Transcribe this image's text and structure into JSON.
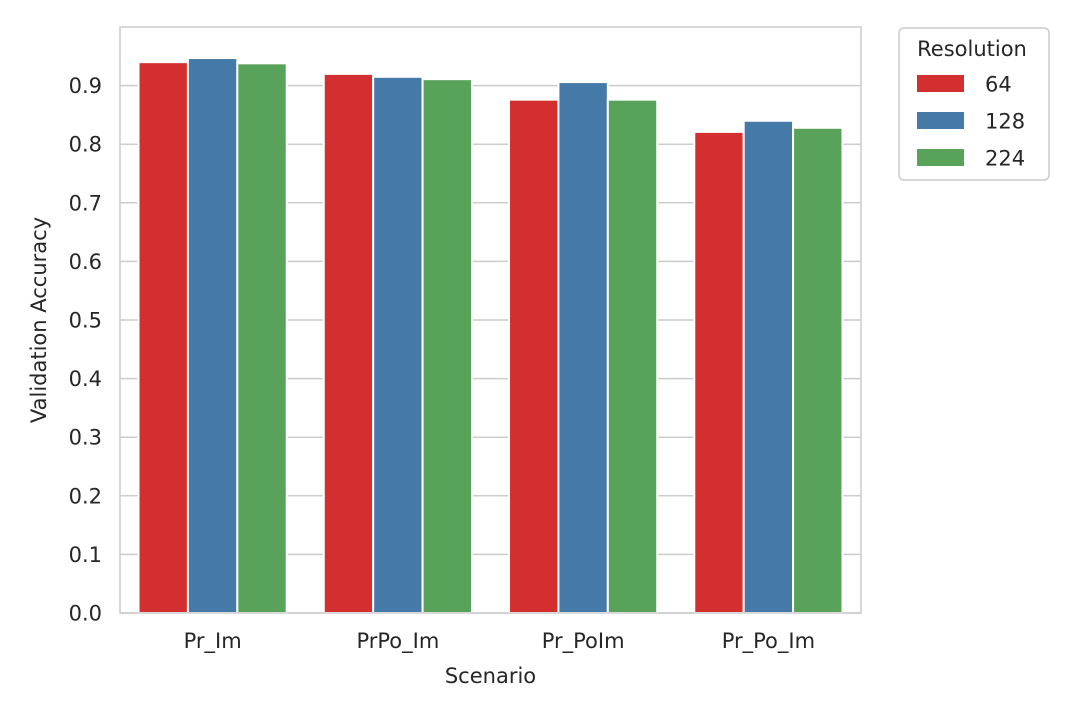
{
  "chart_data": {
    "type": "bar",
    "title": "",
    "xlabel": "Scenario",
    "ylabel": "Validation Accuracy",
    "categories": [
      "Pr_Im",
      "PrPo_Im",
      "Pr_PoIm",
      "Pr_Po_Im"
    ],
    "series": [
      {
        "name": "64",
        "color": "#d32f2f",
        "values": [
          0.94,
          0.92,
          0.876,
          0.821
        ]
      },
      {
        "name": "128",
        "color": "#4479a8",
        "values": [
          0.947,
          0.915,
          0.906,
          0.84
        ]
      },
      {
        "name": "224",
        "color": "#58a25a",
        "values": [
          0.938,
          0.911,
          0.876,
          0.828
        ]
      }
    ],
    "ylim": [
      0,
      1.0
    ],
    "yticks": [
      0.0,
      0.1,
      0.2,
      0.3,
      0.4,
      0.5,
      0.6,
      0.7,
      0.8,
      0.9
    ],
    "ytick_labels": [
      "0.0",
      "0.1",
      "0.2",
      "0.3",
      "0.4",
      "0.5",
      "0.6",
      "0.7",
      "0.8",
      "0.9"
    ],
    "grid": "horizontal",
    "legend": {
      "title": "Resolution",
      "placement": "outside-top-right"
    }
  }
}
